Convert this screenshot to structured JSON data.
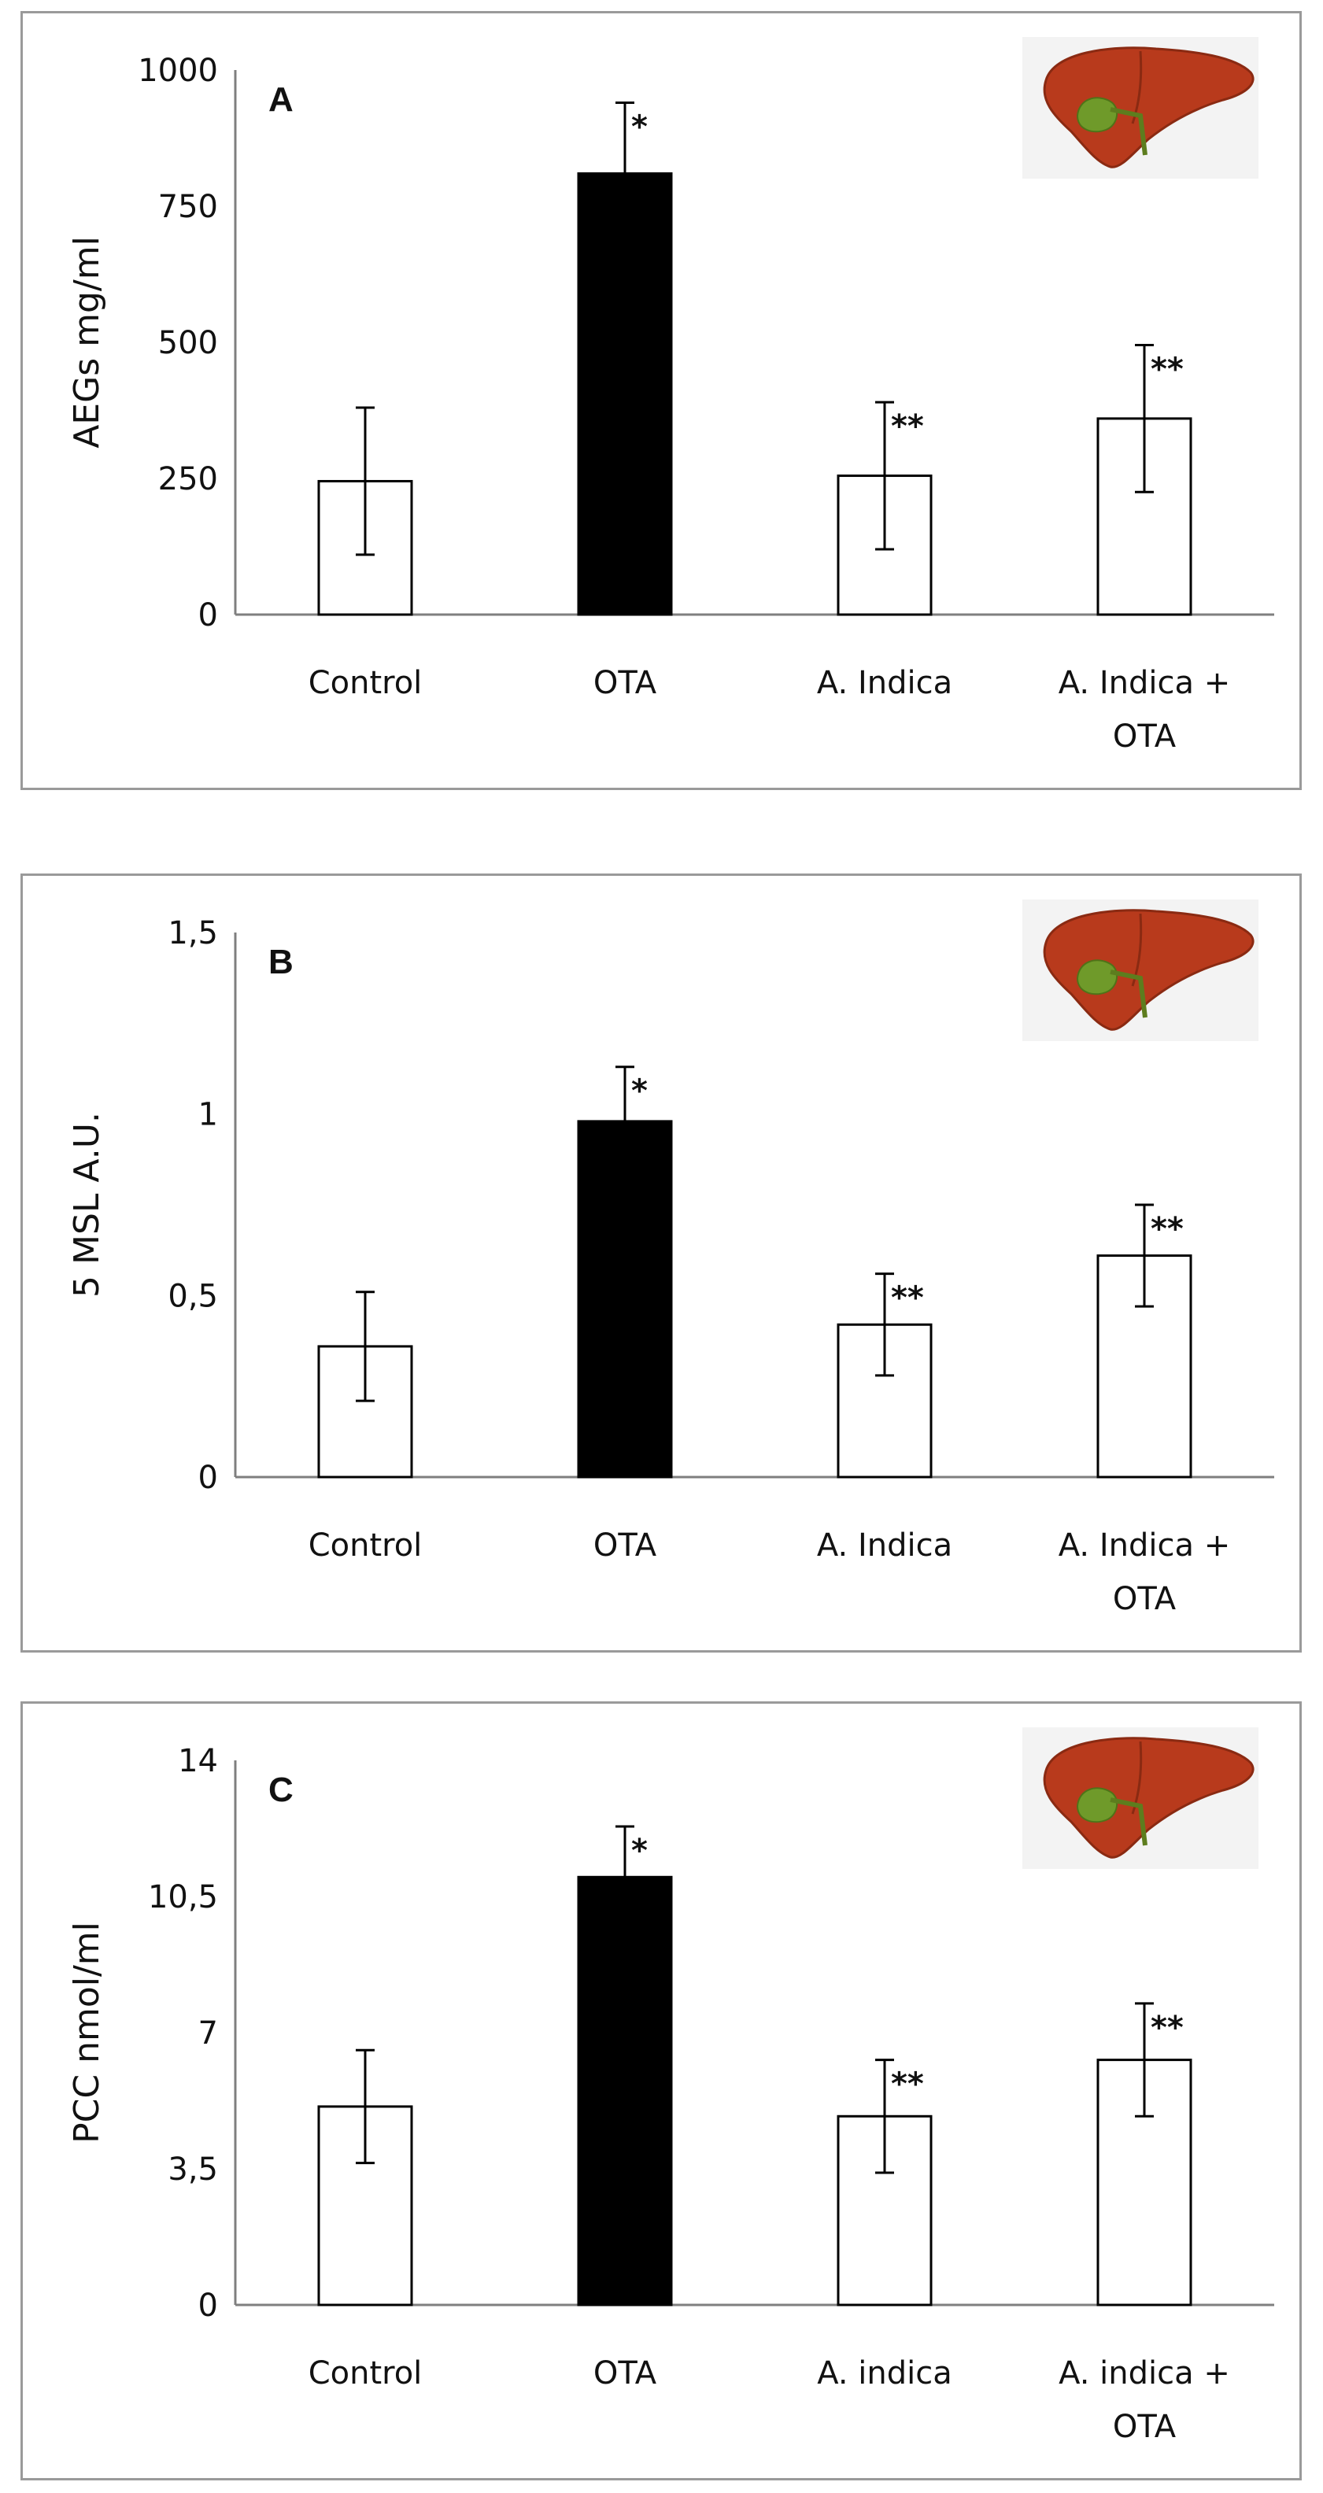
{
  "chart_data": [
    {
      "type": "bar",
      "panel_label": "A",
      "ylabel": "AEGs mg/ml",
      "ylim": [
        0,
        1000
      ],
      "yticks": [
        0,
        250,
        500,
        750,
        1000
      ],
      "ytick_labels": [
        "0",
        "250",
        "500",
        "750",
        "1000"
      ],
      "categories": [
        [
          "Control"
        ],
        [
          "OTA"
        ],
        [
          "A. Indica"
        ],
        [
          "A. Indica +",
          "OTA"
        ]
      ],
      "values": [
        245,
        810,
        255,
        360
      ],
      "errors": [
        135,
        130,
        135,
        135
      ],
      "significance": [
        "",
        "*",
        "**",
        "**"
      ],
      "bar_colors": [
        "#ffffff",
        "#000000",
        "#ffffff",
        "#ffffff"
      ]
    },
    {
      "type": "bar",
      "panel_label": "B",
      "ylabel": "5 MSL A.U.",
      "ylim": [
        0,
        1.5
      ],
      "yticks": [
        0,
        0.5,
        1,
        1.5
      ],
      "ytick_labels": [
        "0",
        "0,5",
        "1",
        "1,5"
      ],
      "categories": [
        [
          "Control"
        ],
        [
          "OTA"
        ],
        [
          "A. Indica"
        ],
        [
          "A. Indica +",
          "OTA"
        ]
      ],
      "values": [
        0.36,
        0.98,
        0.42,
        0.61
      ],
      "errors": [
        0.15,
        0.15,
        0.14,
        0.14
      ],
      "significance": [
        "",
        "*",
        "**",
        "**"
      ],
      "bar_colors": [
        "#ffffff",
        "#000000",
        "#ffffff",
        "#ffffff"
      ]
    },
    {
      "type": "bar",
      "panel_label": "C",
      "ylabel": "PCC nmol/ml",
      "ylim": [
        0,
        14
      ],
      "yticks": [
        0,
        3.5,
        7,
        10.5,
        14
      ],
      "ytick_labels": [
        "0",
        "3,5",
        "7",
        "10,5",
        "14"
      ],
      "categories": [
        [
          "Control"
        ],
        [
          "OTA"
        ],
        [
          "A. indica"
        ],
        [
          "A. indica +",
          "OTA"
        ]
      ],
      "values": [
        5.1,
        11.0,
        4.85,
        6.3
      ],
      "errors": [
        1.45,
        1.3,
        1.45,
        1.45
      ],
      "significance": [
        "",
        "*",
        "**",
        "**"
      ],
      "bar_colors": [
        "#ffffff",
        "#000000",
        "#ffffff",
        "#ffffff"
      ]
    }
  ]
}
